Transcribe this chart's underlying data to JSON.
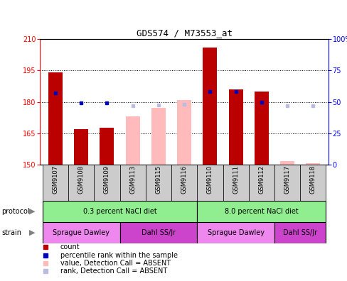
{
  "title": "GDS574 / M73553_at",
  "samples": [
    "GSM9107",
    "GSM9108",
    "GSM9109",
    "GSM9113",
    "GSM9115",
    "GSM9116",
    "GSM9110",
    "GSM9111",
    "GSM9112",
    "GSM9117",
    "GSM9118"
  ],
  "bar_values": [
    194.0,
    167.0,
    167.5,
    null,
    null,
    null,
    206.0,
    186.0,
    185.0,
    null,
    null
  ],
  "bar_absent": [
    null,
    null,
    null,
    173.0,
    177.0,
    181.0,
    null,
    null,
    null,
    151.5,
    150.5
  ],
  "rank_present": [
    57.0,
    49.0,
    49.0,
    null,
    null,
    null,
    58.0,
    58.0,
    50.0,
    null,
    null
  ],
  "rank_absent": [
    null,
    null,
    null,
    47.0,
    47.5,
    48.0,
    null,
    null,
    null,
    47.0,
    47.0
  ],
  "ylim_left": [
    150,
    210
  ],
  "ylim_right": [
    0,
    100
  ],
  "yticks_left": [
    150,
    165,
    180,
    195,
    210
  ],
  "yticks_right": [
    0,
    25,
    50,
    75,
    100
  ],
  "bar_color_present": "#bb0000",
  "bar_color_absent": "#ffbbbb",
  "rank_color_present": "#0000bb",
  "rank_color_absent": "#bbbbdd",
  "bar_width": 0.55,
  "baseline": 150,
  "protocol_groups": [
    {
      "label": "0.3 percent NaCl diet",
      "start": 0,
      "end": 5
    },
    {
      "label": "8.0 percent NaCl diet",
      "start": 6,
      "end": 10
    }
  ],
  "strain_groups": [
    {
      "label": "Sprague Dawley",
      "start": 0,
      "end": 2
    },
    {
      "label": "Dahl SS/Jr",
      "start": 3,
      "end": 5
    },
    {
      "label": "Sprague Dawley",
      "start": 6,
      "end": 8
    },
    {
      "label": "Dahl SS/Jr",
      "start": 9,
      "end": 10
    }
  ],
  "protocol_color": "#90ee90",
  "strain_color_light": "#ee88ee",
  "strain_color_dark": "#cc44cc",
  "legend_items": [
    {
      "label": "count",
      "color": "#bb0000"
    },
    {
      "label": "percentile rank within the sample",
      "color": "#0000bb"
    },
    {
      "label": "value, Detection Call = ABSENT",
      "color": "#ffbbbb"
    },
    {
      "label": "rank, Detection Call = ABSENT",
      "color": "#bbbbdd"
    }
  ]
}
